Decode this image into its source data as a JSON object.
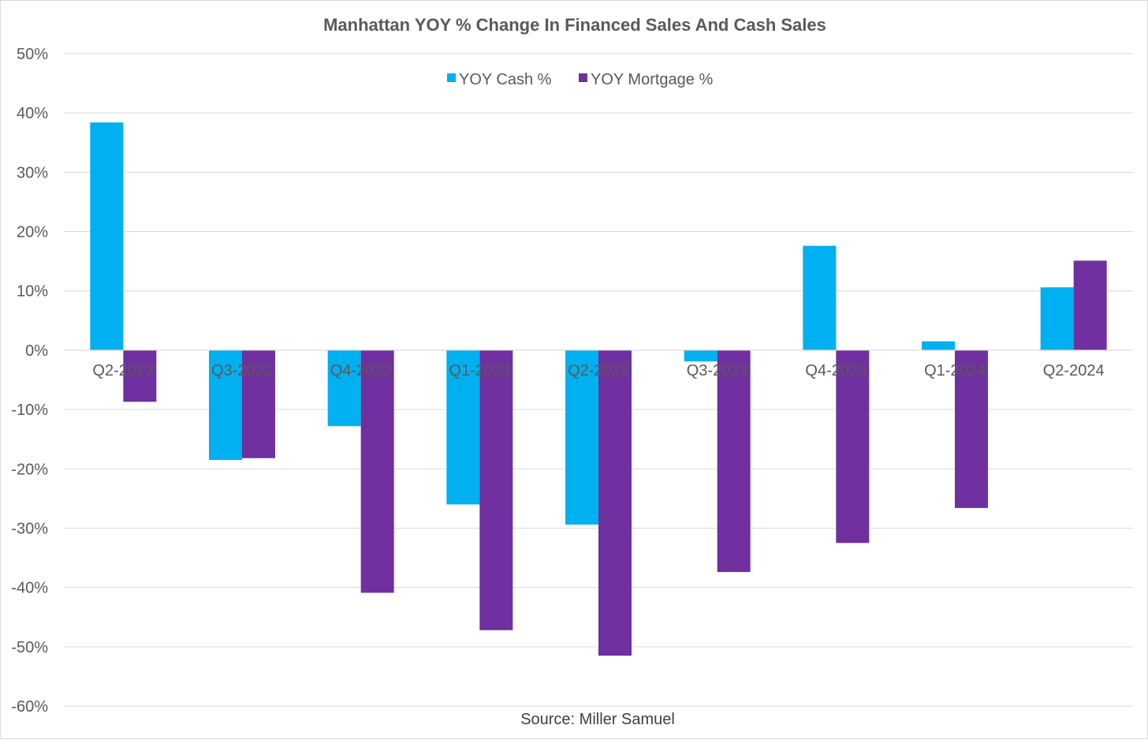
{
  "chart_data": {
    "type": "bar",
    "title": "Manhattan YOY % Change In Financed Sales And Cash Sales",
    "categories": [
      "Q2-2022",
      "Q3-2022",
      "Q4-2022",
      "Q1-2023",
      "Q2-2023",
      "Q3-2023",
      "Q4-2023",
      "Q1-2024",
      "Q2-2024"
    ],
    "series": [
      {
        "name": "YOY Cash %",
        "color": "#00b0f0",
        "values": [
          38.4,
          -18.5,
          -12.8,
          -26.0,
          -29.4,
          -1.9,
          17.6,
          1.5,
          10.6
        ]
      },
      {
        "name": "YOY Mortgage %",
        "color": "#7030a0",
        "values": [
          -8.7,
          -18.2,
          -40.9,
          -47.2,
          -51.5,
          -37.4,
          -32.5,
          -26.6,
          15.1
        ]
      }
    ],
    "ylim": [
      -60,
      50
    ],
    "yticks": [
      50,
      40,
      30,
      20,
      10,
      0,
      -10,
      -20,
      -30,
      -40,
      -50,
      -60
    ],
    "ytick_labels": [
      "50%",
      "40%",
      "30%",
      "20%",
      "10%",
      "0%",
      "-10%",
      "-20%",
      "-30%",
      "-40%",
      "-50%",
      "-60%"
    ],
    "xlabel": "",
    "ylabel": "",
    "grid": true,
    "legend_position": "top-center",
    "source": "Source: Miller Samuel"
  }
}
